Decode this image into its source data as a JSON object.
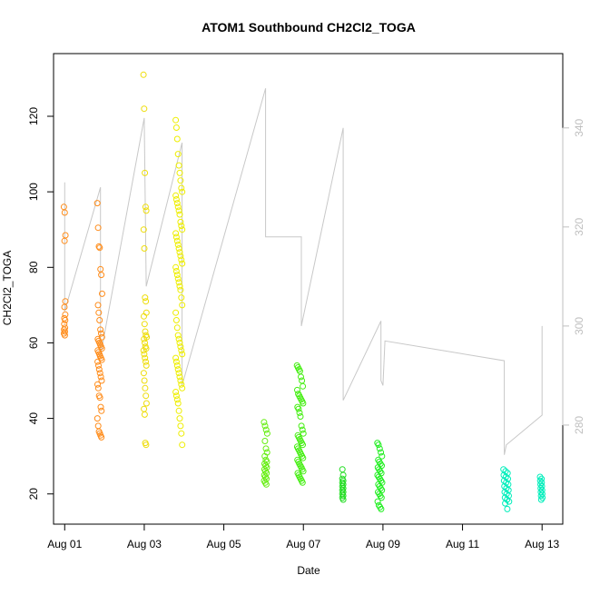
{
  "chart_data": {
    "type": "scatter",
    "title": "ATOM1 Southbound CH2Cl2_TOGA",
    "xlabel": "Date",
    "ylabel": "CH2Cl2_TOGA",
    "xlim": [
      -0.28,
      12.52
    ],
    "ylim": [
      12.0,
      136.6
    ],
    "y2lim": [
      260.0,
      355.0
    ],
    "x_ticks": [
      {
        "value": 0,
        "label": "Aug 01"
      },
      {
        "value": 2,
        "label": "Aug 03"
      },
      {
        "value": 4,
        "label": "Aug 05"
      },
      {
        "value": 6,
        "label": "Aug 07"
      },
      {
        "value": 8,
        "label": "Aug 09"
      },
      {
        "value": 10,
        "label": "Aug 11"
      },
      {
        "value": 12,
        "label": "Aug 13"
      }
    ],
    "y_ticks": [
      20,
      40,
      60,
      80,
      100,
      120
    ],
    "y2_ticks": [
      280,
      300,
      320,
      340
    ],
    "grid": false,
    "legend": "none",
    "colors": {
      "axis": "#000000",
      "right_axis": "#bfbfbf",
      "trace": "#c8c8c8"
    },
    "clusters": [
      {
        "x_center": 0.0,
        "x_spread": 0.02,
        "color": "#ff8c1a",
        "values": [
          96,
          94.5,
          88.5,
          87,
          71,
          69.5,
          67.5,
          66.5,
          66,
          65,
          64,
          63.5,
          63,
          62.5,
          62
        ]
      },
      {
        "x_center": 0.88,
        "x_spread": 0.06,
        "color": "#ff8c1a",
        "values": [
          97,
          90.5,
          85.5,
          85.2,
          79.5,
          78,
          73,
          70,
          68,
          66,
          63.5,
          62.5,
          61.5,
          61,
          60.5,
          60,
          59.5,
          59,
          58.5,
          58,
          57.5,
          57,
          56.5,
          56,
          55.5,
          55,
          54,
          53,
          52,
          51,
          50,
          49,
          48,
          46,
          45.5,
          43,
          42,
          40,
          38,
          36.5,
          36,
          35.5,
          35
        ]
      },
      {
        "x_center": 2.02,
        "x_spread": 0.04,
        "color": "#eedd0a",
        "values": [
          131,
          122,
          105,
          96,
          95,
          90,
          85,
          72,
          71,
          68,
          67,
          65,
          63,
          62,
          61.5,
          61,
          60,
          59,
          58.5,
          58,
          57,
          56,
          55,
          54,
          52,
          50,
          48,
          46,
          44,
          42.5,
          41,
          33.5,
          33
        ]
      },
      {
        "x_center": 2.88,
        "x_spread": 0.09,
        "color": "#eeee00",
        "values": [
          119,
          117,
          114,
          110,
          107,
          105,
          103,
          101,
          100,
          99,
          98,
          97,
          96,
          95,
          94,
          92,
          91,
          90,
          89,
          88,
          87,
          86,
          85,
          84,
          83,
          82,
          81,
          80,
          79,
          78,
          77,
          76,
          75,
          74,
          72,
          70,
          68,
          66,
          64,
          62,
          61,
          60,
          59,
          58,
          57,
          56,
          55,
          54,
          53,
          52,
          51,
          50,
          49,
          48,
          47,
          46,
          45,
          44,
          42,
          40,
          38,
          36,
          33
        ]
      },
      {
        "x_center": 5.05,
        "x_spread": 0.04,
        "color": "#66ee11",
        "values": [
          39,
          38,
          37,
          36,
          34,
          32,
          31,
          30,
          29,
          28.5,
          28,
          27.5,
          27,
          26.5,
          26,
          25.5,
          25,
          24.5,
          24,
          23.5,
          23,
          22.5
        ]
      },
      {
        "x_center": 5.92,
        "x_spread": 0.08,
        "color": "#44ee11",
        "values": [
          54,
          53.5,
          53,
          52.5,
          51,
          50,
          48.5,
          47.5,
          46.5,
          46,
          45.5,
          45,
          44.5,
          44,
          43,
          42.5,
          41.5,
          40.5,
          38,
          37,
          36,
          35.5,
          35,
          34.5,
          34,
          33.5,
          33,
          32.5,
          32,
          31.5,
          31,
          30.5,
          30,
          29.5,
          29,
          28.5,
          28,
          27.5,
          27,
          26.5,
          26,
          25.5,
          25,
          24.5,
          24,
          23.5,
          23
        ]
      },
      {
        "x_center": 7.0,
        "x_spread": 0.02,
        "color": "#22dd22",
        "values": [
          26.5,
          25,
          24,
          23.5,
          23,
          22.5,
          22,
          21.5,
          21,
          20.5,
          20,
          19.5,
          19,
          18.5
        ]
      },
      {
        "x_center": 7.92,
        "x_spread": 0.06,
        "color": "#22ee22",
        "values": [
          33.5,
          33,
          32,
          31,
          30,
          29,
          28.5,
          28,
          27.5,
          27,
          26.5,
          26,
          25.5,
          25,
          24.5,
          24,
          23.5,
          23,
          22.5,
          22,
          21.5,
          21,
          20.5,
          20,
          19.5,
          19,
          18,
          17,
          16.5,
          16
        ]
      },
      {
        "x_center": 11.1,
        "x_spread": 0.07,
        "color": "#00eebb",
        "values": [
          26.5,
          26,
          25.5,
          25,
          24.5,
          24,
          23.5,
          23,
          22.5,
          22,
          21.5,
          21,
          20.5,
          20,
          19.5,
          19,
          18.5,
          18,
          17.5,
          16
        ]
      },
      {
        "x_center": 11.98,
        "x_spread": 0.03,
        "color": "#00eebb",
        "values": [
          24.5,
          24,
          23.5,
          23,
          22.5,
          22,
          21.5,
          21,
          20.5,
          20,
          19.5,
          19,
          18.5
        ]
      }
    ],
    "trace_series": {
      "name": "right-axis trace",
      "axis": "right",
      "points": [
        [
          0.0,
          329
        ],
        [
          0.0,
          303
        ],
        [
          0.9,
          328
        ],
        [
          0.9,
          294
        ],
        [
          2.0,
          342
        ],
        [
          2.05,
          308
        ],
        [
          2.95,
          337
        ],
        [
          2.95,
          288
        ],
        [
          5.05,
          348
        ],
        [
          5.05,
          318
        ],
        [
          5.95,
          318
        ],
        [
          5.95,
          300
        ],
        [
          7.0,
          340
        ],
        [
          7.0,
          285
        ],
        [
          7.95,
          301
        ],
        [
          7.95,
          289
        ],
        [
          8.0,
          288
        ],
        [
          8.05,
          297
        ],
        [
          11.05,
          293
        ],
        [
          11.05,
          274
        ],
        [
          11.1,
          276
        ],
        [
          12.0,
          282
        ],
        [
          12.0,
          300
        ]
      ]
    }
  }
}
